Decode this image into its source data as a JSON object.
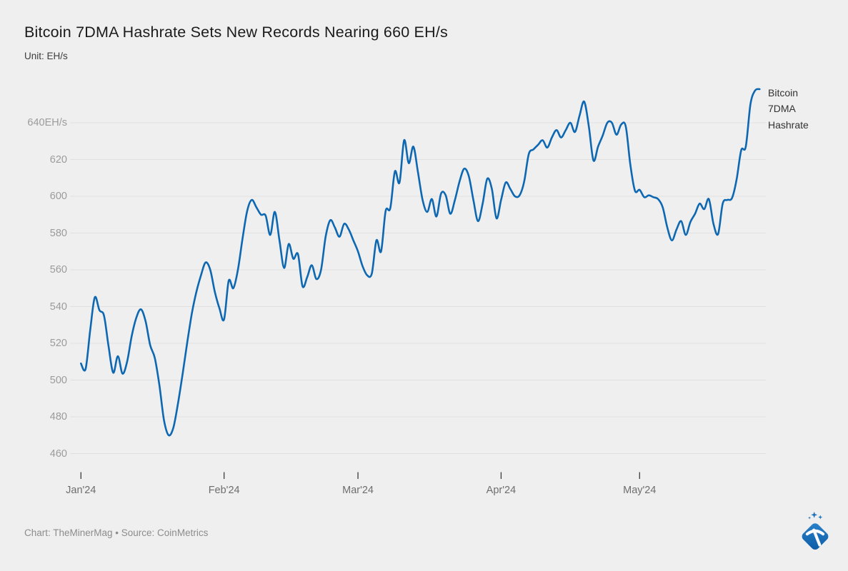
{
  "header": {
    "title": "Bitcoin 7DMA Hashrate Sets New Records Nearing 660 EH/s",
    "unit_label": "Unit: EH/s"
  },
  "legend": {
    "lines": [
      "Bitcoin",
      "7DMA",
      "Hashrate"
    ]
  },
  "footer": {
    "credit": "Chart: TheMinerMag • Source: CoinMetrics"
  },
  "logo": {
    "name": "theminermag-pickaxe-logo",
    "primary_color": "#1d74bd"
  },
  "colors": {
    "background": "#efeff0",
    "gridline": "#e0e0e0",
    "series_line": "#0d68b1",
    "tick": "#3c3c3c",
    "y_label": "#9b9b9b",
    "x_label": "#6e6e6e"
  },
  "chart_data": {
    "type": "line",
    "title": "Bitcoin 7DMA Hashrate Sets New Records Nearing 660 EH/s",
    "unit": "EH/s",
    "xlabel": "",
    "ylabel": "EH/s",
    "grid": true,
    "legend_position": "right-of-line-end",
    "ylim": [
      452,
      665
    ],
    "y_ticks": [
      460,
      480,
      500,
      520,
      540,
      560,
      580,
      600,
      620,
      640
    ],
    "y_tick_labels": [
      "460",
      "480",
      "500",
      "520",
      "540",
      "560",
      "580",
      "600",
      "620",
      "640EH/s"
    ],
    "x_tick_labels": [
      "Jan'24",
      "Feb'24",
      "Mar'24",
      "Apr'24",
      "May'24"
    ],
    "x_tick_day_index": [
      0,
      31,
      60,
      91,
      121
    ],
    "start_date": "2024-01-01",
    "end_date": "2024-05-27",
    "series": [
      {
        "name": "Bitcoin 7DMA Hashrate",
        "color": "#0d68b1",
        "cadence": "daily",
        "values": [
          509,
          506,
          527,
          545,
          538,
          535,
          518,
          504,
          513,
          503.5,
          510,
          524,
          534,
          538.5,
          532,
          519,
          512,
          497,
          478,
          470,
          474,
          487,
          503,
          520,
          536,
          548,
          557,
          564,
          560,
          548,
          539,
          533,
          554,
          550,
          560,
          577,
          592,
          598,
          594,
          590,
          589.5,
          579,
          591.5,
          576,
          561,
          574,
          566,
          568.5,
          551,
          556,
          562.5,
          555,
          560,
          578,
          587,
          583,
          578,
          585,
          582,
          576,
          570,
          562,
          557,
          558,
          576,
          570,
          592,
          593.5,
          613.5,
          607.5,
          630.5,
          618,
          627,
          613,
          598,
          591.5,
          598.5,
          589,
          601.5,
          600.5,
          590.5,
          598,
          608,
          615,
          611,
          598,
          586.5,
          596,
          609.5,
          604,
          588,
          598,
          607.5,
          604,
          600,
          600.5,
          608,
          623,
          625.5,
          628,
          630.5,
          626.5,
          632,
          636,
          632,
          636,
          640,
          635,
          644,
          651.5,
          638,
          619.5,
          627,
          633,
          640,
          640,
          633.5,
          639,
          638,
          617,
          603,
          603.5,
          599.5,
          600.5,
          599.5,
          598.5,
          594,
          583,
          576,
          582,
          586.5,
          579,
          586,
          590.5,
          596,
          593,
          598.5,
          585,
          579.5,
          596,
          598,
          599,
          609,
          625,
          627,
          650,
          657.5,
          658.3
        ]
      }
    ]
  }
}
